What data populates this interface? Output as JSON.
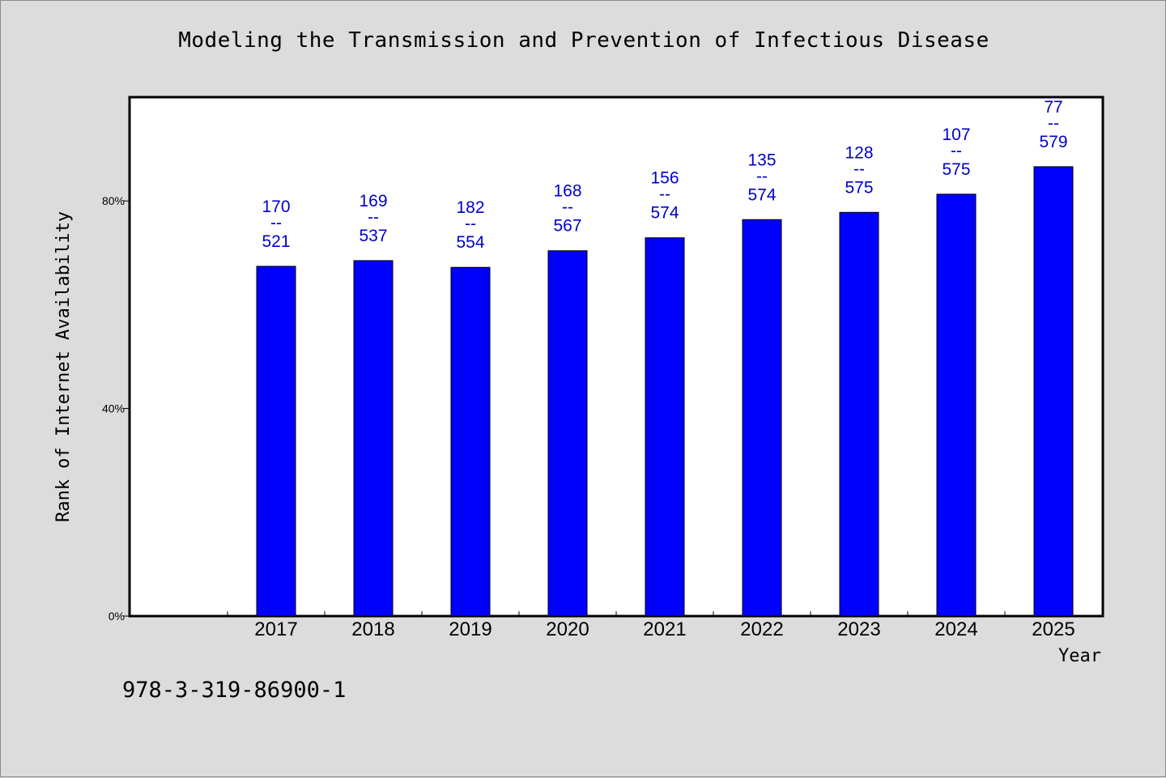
{
  "chart_data": {
    "type": "bar",
    "title": "Modeling the Transmission and Prevention of Infectious Disease",
    "xlabel": "Year",
    "ylabel": "Rank of Internet Availability",
    "categories": [
      "2017",
      "2018",
      "2019",
      "2020",
      "2021",
      "2022",
      "2023",
      "2024",
      "2025"
    ],
    "values": [
      67.4,
      68.5,
      67.2,
      70.4,
      72.9,
      76.4,
      77.8,
      81.3,
      86.6
    ],
    "data_labels": [
      {
        "top": "170",
        "sep": "--",
        "bottom": "521"
      },
      {
        "top": "169",
        "sep": "--",
        "bottom": "537"
      },
      {
        "top": "182",
        "sep": "--",
        "bottom": "554"
      },
      {
        "top": "168",
        "sep": "--",
        "bottom": "567"
      },
      {
        "top": "156",
        "sep": "--",
        "bottom": "574"
      },
      {
        "top": "135",
        "sep": "--",
        "bottom": "574"
      },
      {
        "top": "128",
        "sep": "--",
        "bottom": "575"
      },
      {
        "top": "107",
        "sep": "--",
        "bottom": "575"
      },
      {
        "top": "77",
        "sep": "--",
        "bottom": "579"
      }
    ],
    "yticks": [
      {
        "value": 0,
        "label": "0%"
      },
      {
        "value": 40,
        "label": "40%"
      },
      {
        "value": 80,
        "label": "80%"
      }
    ],
    "ylim": [
      0,
      100
    ],
    "grid": false,
    "bar_color": "#0000ff",
    "label_color": "#0000cc"
  },
  "footer": {
    "isbn": "978-3-319-86900-1"
  }
}
